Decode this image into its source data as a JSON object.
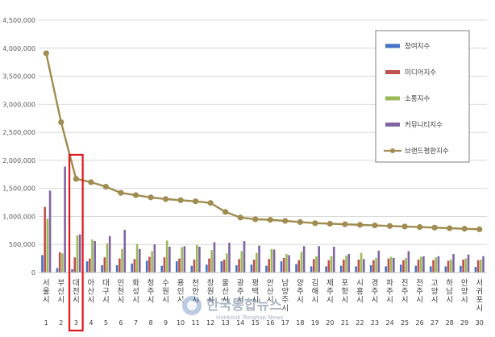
{
  "chart_data": {
    "type": "bar",
    "title": "",
    "xlabel": "",
    "ylabel": "",
    "ylim": [
      0,
      4500000
    ],
    "ytick_labels": [
      "0",
      "500,000",
      "1,000,000",
      "1,500,000",
      "2,000,000",
      "2,500,000",
      "3,000,000",
      "3,500,000",
      "4,000,000",
      "4,500,000"
    ],
    "ytick_values": [
      0,
      500000,
      1000000,
      1500000,
      2000000,
      2500000,
      3000000,
      3500000,
      4000000,
      4500000
    ],
    "grid": true,
    "legend_position": "top-right",
    "categories": [
      "서울시",
      "부산시",
      "대전시",
      "아산시",
      "대구시",
      "인천시",
      "화성시",
      "청주시",
      "수원시",
      "용인시",
      "천안시",
      "창원시",
      "울산시",
      "광주시",
      "평택시",
      "안산시",
      "남양주시",
      "양주시",
      "김해시",
      "제주시",
      "포항시",
      "시흥시",
      "경주시",
      "파주시",
      "진주시",
      "전주시",
      "고양시",
      "하남시",
      "안양시",
      "서귀포시"
    ],
    "ranks": [
      "1",
      "2",
      "3",
      "4",
      "5",
      "6",
      "7",
      "8",
      "9",
      "10",
      "11",
      "12",
      "13",
      "14",
      "15",
      "16",
      "17",
      "18",
      "19",
      "20",
      "21",
      "22",
      "23",
      "24",
      "25",
      "26",
      "27",
      "28",
      "29",
      "30"
    ],
    "highlight_index": 2,
    "series": [
      {
        "name": "참여지수",
        "color": "#4472c4",
        "kind": "bar",
        "values": [
          310000,
          80000,
          60000,
          200000,
          130000,
          130000,
          160000,
          210000,
          120000,
          200000,
          120000,
          140000,
          200000,
          130000,
          140000,
          120000,
          200000,
          150000,
          110000,
          110000,
          120000,
          110000,
          130000,
          110000,
          140000,
          120000,
          110000,
          110000,
          120000,
          100000
        ]
      },
      {
        "name": "미디어지수",
        "color": "#c0504d",
        "kind": "bar",
        "values": [
          1170000,
          360000,
          270000,
          250000,
          270000,
          250000,
          240000,
          280000,
          270000,
          250000,
          230000,
          250000,
          230000,
          240000,
          230000,
          240000,
          260000,
          220000,
          240000,
          220000,
          230000,
          230000,
          220000,
          250000,
          220000,
          230000,
          220000,
          210000,
          230000,
          220000
        ]
      },
      {
        "name": "소통지수",
        "color": "#9bbb59",
        "kind": "bar",
        "values": [
          960000,
          340000,
          660000,
          590000,
          520000,
          420000,
          510000,
          380000,
          570000,
          450000,
          490000,
          400000,
          340000,
          380000,
          350000,
          420000,
          330000,
          370000,
          290000,
          290000,
          300000,
          350000,
          260000,
          280000,
          260000,
          280000,
          270000,
          230000,
          250000,
          230000
        ]
      },
      {
        "name": "커뮤니티지수",
        "color": "#8064a2",
        "kind": "bar",
        "values": [
          1460000,
          1890000,
          680000,
          560000,
          650000,
          760000,
          420000,
          500000,
          460000,
          470000,
          460000,
          540000,
          530000,
          560000,
          480000,
          410000,
          310000,
          470000,
          470000,
          460000,
          330000,
          240000,
          390000,
          260000,
          380000,
          290000,
          290000,
          330000,
          320000,
          290000
        ]
      },
      {
        "name": "브랜드평판지수",
        "color": "#a08c50",
        "kind": "line",
        "values": [
          3910000,
          2680000,
          1670000,
          1610000,
          1530000,
          1420000,
          1380000,
          1340000,
          1310000,
          1290000,
          1270000,
          1240000,
          1080000,
          980000,
          950000,
          940000,
          920000,
          900000,
          880000,
          870000,
          860000,
          850000,
          840000,
          830000,
          820000,
          810000,
          800000,
          790000,
          780000,
          770000
        ]
      }
    ]
  },
  "watermark": {
    "title": "한국통합뉴스",
    "subtitle": "Hankook Tonghap News"
  }
}
